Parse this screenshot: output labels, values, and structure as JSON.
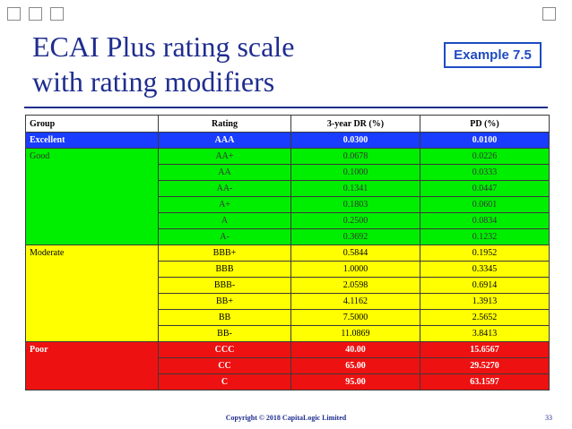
{
  "slide": {
    "title_line1": "ECAI Plus rating scale",
    "title_line2": "with rating modifiers",
    "badge": "Example 7.5",
    "footer": "Copyright © 2018   CapitaLogic Limited",
    "page_number": "33"
  },
  "colors": {
    "title": "#1f2d8f",
    "excellent": "#1a3cff",
    "good": "#00ee00",
    "moderate": "#ffff00",
    "poor": "#ee1111"
  },
  "table": {
    "headers": [
      "Group",
      "Rating",
      "3-year DR (%)",
      "PD (%)"
    ],
    "groups": [
      {
        "name": "Excellent",
        "style": "excellent",
        "rows": [
          {
            "rating": "AAA",
            "dr": "0.0300",
            "pd": "0.0100"
          }
        ]
      },
      {
        "name": "Good",
        "style": "good",
        "rows": [
          {
            "rating": "AA+",
            "dr": "0.0678",
            "pd": "0.0226"
          },
          {
            "rating": "AA",
            "dr": "0.1000",
            "pd": "0.0333"
          },
          {
            "rating": "AA-",
            "dr": "0.1341",
            "pd": "0.0447"
          },
          {
            "rating": "A+",
            "dr": "0.1803",
            "pd": "0.0601"
          },
          {
            "rating": "A",
            "dr": "0.2500",
            "pd": "0.0834"
          },
          {
            "rating": "A-",
            "dr": "0.3692",
            "pd": "0.1232"
          }
        ]
      },
      {
        "name": "Moderate",
        "style": "moderate",
        "rows": [
          {
            "rating": "BBB+",
            "dr": "0.5844",
            "pd": "0.1952"
          },
          {
            "rating": "BBB",
            "dr": "1.0000",
            "pd": "0.3345"
          },
          {
            "rating": "BBB-",
            "dr": "2.0598",
            "pd": "0.6914"
          },
          {
            "rating": "BB+",
            "dr": "4.1162",
            "pd": "1.3913"
          },
          {
            "rating": "BB",
            "dr": "7.5000",
            "pd": "2.5652"
          },
          {
            "rating": "BB-",
            "dr": "11.0869",
            "pd": "3.8413"
          }
        ]
      },
      {
        "name": "Poor",
        "style": "poor",
        "rows": [
          {
            "rating": "CCC",
            "dr": "40.00",
            "pd": "15.6567"
          },
          {
            "rating": "CC",
            "dr": "65.00",
            "pd": "29.5270"
          },
          {
            "rating": "C",
            "dr": "95.00",
            "pd": "63.1597"
          }
        ]
      }
    ]
  }
}
